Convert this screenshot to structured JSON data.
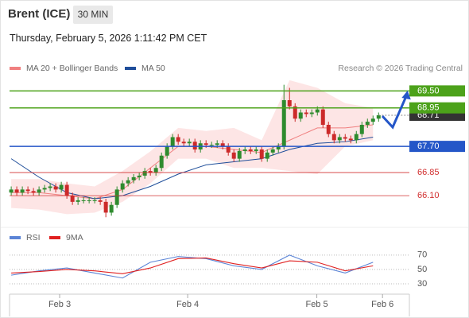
{
  "header": {
    "symbol": "Brent (ICE)",
    "interval": "30 MIN",
    "timestamp": "Thursday, February 5, 2026 1:11:42 PM CET",
    "credit": "Research © 2026 Trading Central"
  },
  "chart_data": [
    {
      "type": "candlestick",
      "x": [
        0,
        1,
        2,
        3,
        4,
        5,
        6,
        7,
        8,
        9,
        10,
        11,
        12,
        13,
        14,
        15,
        16,
        17,
        18,
        19,
        20,
        21,
        22,
        23,
        24,
        25,
        26,
        27,
        28,
        29,
        30,
        31,
        32,
        33,
        34,
        35,
        36,
        37,
        38,
        39,
        40,
        41,
        42,
        43,
        44,
        45,
        46,
        47,
        48,
        49,
        50,
        51,
        52,
        53,
        54,
        55,
        56,
        57,
        58,
        59,
        60,
        61,
        62,
        63,
        64,
        65,
        66
      ],
      "open": [
        66.2,
        66.3,
        66.2,
        66.3,
        66.25,
        66.2,
        66.3,
        66.35,
        66.4,
        66.3,
        66.45,
        66.1,
        65.9,
        65.95,
        65.95,
        65.95,
        65.95,
        65.9,
        65.55,
        65.8,
        66.3,
        66.5,
        66.6,
        66.7,
        66.75,
        66.9,
        66.85,
        67.0,
        67.4,
        67.7,
        68.0,
        67.85,
        67.8,
        67.85,
        67.6,
        67.8,
        67.75,
        67.75,
        67.8,
        67.7,
        67.5,
        67.3,
        67.55,
        67.6,
        67.55,
        67.6,
        67.3,
        67.5,
        67.6,
        67.7,
        69.2,
        69.0,
        68.6,
        68.8,
        68.75,
        68.8,
        68.9,
        68.4,
        68.1,
        67.9,
        68.0,
        67.95,
        67.9,
        68.1,
        68.4,
        68.5,
        68.6
      ],
      "high": [
        66.4,
        66.4,
        66.4,
        66.4,
        66.35,
        66.4,
        66.45,
        66.5,
        66.5,
        66.55,
        66.55,
        66.2,
        66.05,
        66.05,
        66.05,
        66.05,
        66.05,
        66.0,
        65.9,
        66.4,
        66.6,
        66.7,
        66.8,
        66.85,
        67.0,
        67.0,
        67.1,
        67.5,
        67.8,
        68.1,
        68.1,
        67.95,
        67.95,
        67.95,
        67.9,
        67.9,
        67.85,
        67.9,
        67.9,
        67.8,
        67.6,
        67.65,
        67.7,
        67.7,
        67.7,
        67.7,
        67.6,
        67.7,
        67.8,
        69.7,
        69.6,
        69.1,
        68.9,
        68.9,
        68.9,
        69.0,
        69.0,
        68.5,
        68.2,
        68.1,
        68.1,
        68.05,
        68.2,
        68.5,
        68.6,
        68.7,
        68.8
      ],
      "low": [
        66.1,
        66.1,
        66.1,
        66.15,
        66.1,
        66.1,
        66.2,
        66.25,
        66.2,
        66.2,
        66.0,
        65.8,
        65.8,
        65.85,
        65.85,
        65.85,
        65.8,
        65.4,
        65.45,
        65.7,
        66.2,
        66.4,
        66.5,
        66.6,
        66.65,
        66.75,
        66.75,
        66.9,
        67.3,
        67.6,
        67.75,
        67.7,
        67.7,
        67.5,
        67.5,
        67.65,
        67.65,
        67.65,
        67.6,
        67.4,
        67.2,
        67.2,
        67.45,
        67.45,
        67.45,
        67.2,
        67.2,
        67.4,
        67.5,
        67.6,
        68.9,
        68.5,
        68.5,
        68.65,
        68.65,
        68.7,
        68.3,
        68.0,
        67.8,
        67.8,
        67.85,
        67.8,
        67.8,
        68.0,
        68.3,
        68.4,
        68.5
      ],
      "close": [
        66.3,
        66.2,
        66.3,
        66.25,
        66.2,
        66.3,
        66.35,
        66.4,
        66.3,
        66.45,
        66.1,
        65.9,
        65.95,
        65.95,
        65.95,
        65.95,
        65.9,
        65.55,
        65.8,
        66.3,
        66.5,
        66.6,
        66.7,
        66.75,
        66.9,
        66.85,
        67.0,
        67.4,
        67.7,
        68.0,
        67.85,
        67.8,
        67.85,
        67.6,
        67.8,
        67.75,
        67.75,
        67.8,
        67.7,
        67.5,
        67.3,
        67.55,
        67.6,
        67.55,
        67.6,
        67.3,
        67.5,
        67.6,
        67.7,
        69.2,
        69.0,
        68.6,
        68.8,
        68.75,
        68.8,
        68.9,
        68.4,
        68.1,
        67.9,
        68.0,
        67.95,
        67.9,
        68.1,
        68.4,
        68.5,
        68.6,
        68.71
      ],
      "up_color": "#2e8b2e",
      "down_color": "#cc2a2a",
      "series": [
        {
          "name": "MA 20 + Bollinger Bands",
          "color": "#f08080",
          "band_color": "#fde0e0",
          "x": [
            0,
            5,
            10,
            15,
            20,
            25,
            30,
            35,
            40,
            45,
            50,
            55,
            60,
            65
          ],
          "values": [
            66.2,
            66.2,
            66.1,
            66.0,
            66.3,
            67.0,
            67.7,
            67.7,
            67.6,
            67.5,
            67.9,
            68.3,
            68.3,
            68.4
          ],
          "upper": [
            66.64,
            66.64,
            66.5,
            66.4,
            66.9,
            67.54,
            68.3,
            68.2,
            68.3,
            67.9,
            69.85,
            69.6,
            69.1,
            68.95
          ],
          "lower": [
            65.7,
            65.65,
            65.5,
            65.55,
            65.9,
            66.5,
            67.3,
            67.3,
            67.0,
            67.0,
            66.9,
            66.8,
            67.7,
            67.9
          ]
        },
        {
          "name": "MA 50",
          "color": "#1f4e9a",
          "x": [
            0,
            5,
            10,
            15,
            20,
            25,
            30,
            35,
            40,
            45,
            50,
            55,
            60,
            65
          ],
          "values": [
            67.3,
            66.7,
            66.2,
            66.0,
            66.1,
            66.4,
            66.8,
            67.1,
            67.2,
            67.3,
            67.6,
            67.8,
            67.85,
            68.0
          ]
        }
      ],
      "levels": [
        {
          "value": 69.5,
          "label": "69.50",
          "color": "#4ca21a",
          "boxed": true
        },
        {
          "value": 68.95,
          "label": "68.95",
          "color": "#4ca21a",
          "boxed": true
        },
        {
          "value": 67.7,
          "label": "67.70",
          "color": "#2456c8",
          "boxed": true
        },
        {
          "value": 66.85,
          "label": "66.85",
          "color": "#d23030",
          "boxed": false
        },
        {
          "value": 66.1,
          "label": "66.10",
          "color": "#d23030",
          "boxed": false
        }
      ],
      "current": {
        "value": 68.71,
        "label": "68.71",
        "color": "#333333"
      },
      "xlim": [
        -0.3,
        71.1
      ],
      "ylim": [
        65.2,
        70.0
      ],
      "xticks": [
        {
          "value": 8.7,
          "label": "Feb 3"
        },
        {
          "value": 31.7,
          "label": "Feb 4"
        },
        {
          "value": 54.9,
          "label": "Feb 5"
        },
        {
          "value": 66.7,
          "label": "Feb 6"
        }
      ]
    },
    {
      "type": "line",
      "series": [
        {
          "name": "RSI",
          "color": "#5b84d6",
          "x": [
            0,
            5,
            10,
            15,
            20,
            25,
            30,
            35,
            40,
            45,
            50,
            55,
            60,
            65
          ],
          "values": [
            42,
            48,
            52,
            45,
            38,
            60,
            68,
            65,
            55,
            50,
            70,
            55,
            45,
            60
          ]
        },
        {
          "name": "9MA",
          "color": "#e02020",
          "x": [
            0,
            5,
            10,
            15,
            20,
            25,
            30,
            35,
            40,
            45,
            50,
            55,
            60,
            65
          ],
          "values": [
            45,
            47,
            50,
            48,
            44,
            52,
            65,
            66,
            58,
            52,
            62,
            60,
            48,
            55
          ]
        }
      ],
      "ylim": [
        15,
        82
      ],
      "yticks": [
        30,
        50,
        70
      ],
      "grid": true
    }
  ]
}
